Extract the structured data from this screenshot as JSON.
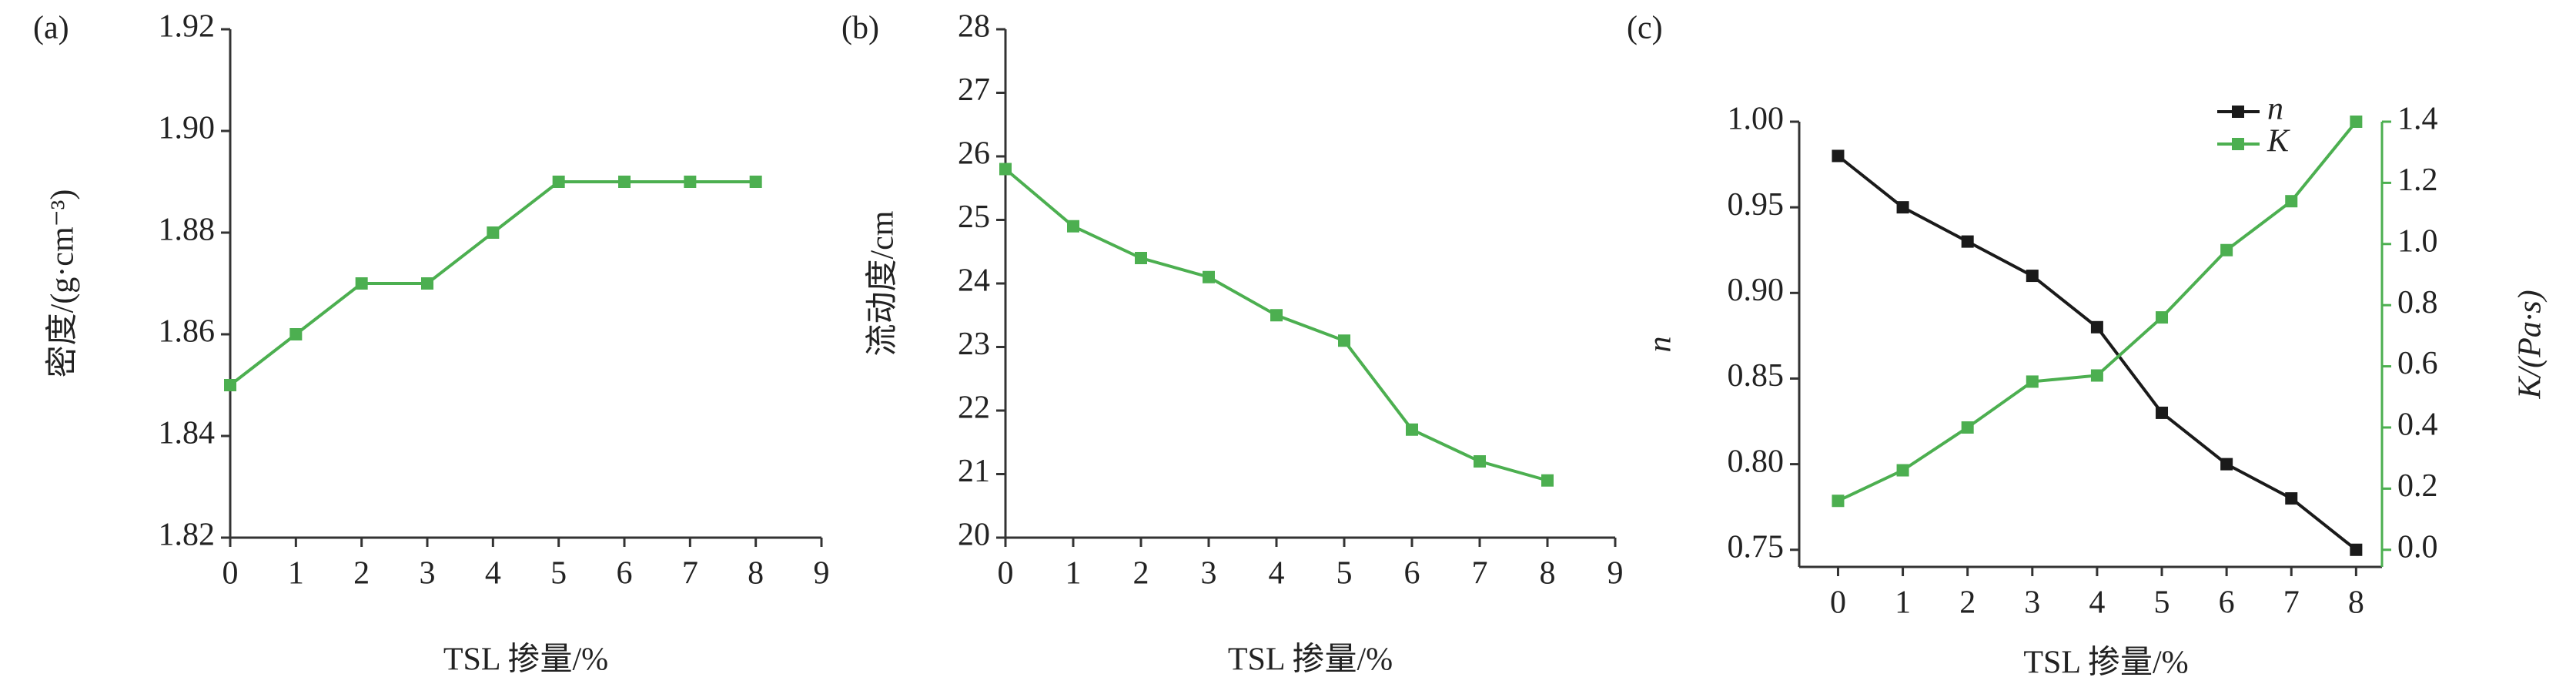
{
  "chart_data": [
    {
      "type": "line",
      "panel_label": "(a)",
      "ylabel": "密度/(g·cm⁻³)",
      "xlabel": "TSL 掺量/%",
      "x": [
        0,
        1,
        2,
        3,
        4,
        5,
        6,
        7,
        8
      ],
      "values": [
        1.85,
        1.86,
        1.87,
        1.87,
        1.88,
        1.89,
        1.89,
        1.89,
        1.89
      ],
      "color": "#4caf50",
      "xlim": [
        0,
        9
      ],
      "xticks": [
        0,
        1,
        2,
        3,
        4,
        5,
        6,
        7,
        8,
        9
      ],
      "ylim": [
        1.82,
        1.92
      ],
      "yticks": [
        1.82,
        1.84,
        1.86,
        1.88,
        {
          "value": 1.9,
          "label": "1.90"
        },
        1.92
      ]
    },
    {
      "type": "line",
      "panel_label": "(b)",
      "ylabel": "流动度/cm",
      "xlabel": "TSL 掺量/%",
      "x": [
        0,
        1,
        2,
        3,
        4,
        5,
        6,
        7,
        8
      ],
      "values": [
        25.8,
        24.9,
        24.4,
        24.1,
        23.5,
        23.1,
        21.7,
        21.2,
        20.9
      ],
      "color": "#4caf50",
      "xlim": [
        0,
        9
      ],
      "xticks": [
        0,
        1,
        2,
        3,
        4,
        5,
        6,
        7,
        8,
        9
      ],
      "ylim": [
        20,
        28
      ],
      "yticks": [
        20,
        21,
        22,
        23,
        24,
        25,
        26,
        27,
        28
      ]
    },
    {
      "type": "line",
      "panel_label": "(c)",
      "ylabel": "n",
      "y2label": "K/(Pa·s)",
      "xlabel": "TSL 掺量/%",
      "x": [
        0,
        1,
        2,
        3,
        4,
        5,
        6,
        7,
        8
      ],
      "series": [
        {
          "name": "n",
          "color": "#1a1a1a",
          "values": [
            0.98,
            0.95,
            0.93,
            0.91,
            0.88,
            0.83,
            0.8,
            0.78,
            0.75
          ]
        },
        {
          "name": "K",
          "color": "#4caf50",
          "axis": "y2",
          "values": [
            0.16,
            0.26,
            0.4,
            0.55,
            0.57,
            0.76,
            0.98,
            1.14,
            1.4
          ]
        }
      ],
      "xlim": [
        -0.6,
        8.4
      ],
      "xticks": [
        0,
        1,
        2,
        3,
        4,
        5,
        6,
        7,
        8
      ],
      "ylim": [
        0.74,
        1.0
      ],
      "yticks": [
        0.75,
        {
          "value": 0.8,
          "label": "0.80"
        },
        0.85,
        {
          "value": 0.9,
          "label": "0.90"
        },
        0.95,
        {
          "value": 1.0,
          "label": "1.00"
        }
      ],
      "y2lim": [
        -0.056,
        1.4
      ],
      "y2ticks": [
        {
          "value": 0,
          "label": "0.0"
        },
        0.2,
        0.4,
        0.6,
        0.8,
        {
          "value": 1,
          "label": "1.0"
        },
        1.2,
        1.4
      ],
      "legend": "upper right"
    }
  ]
}
